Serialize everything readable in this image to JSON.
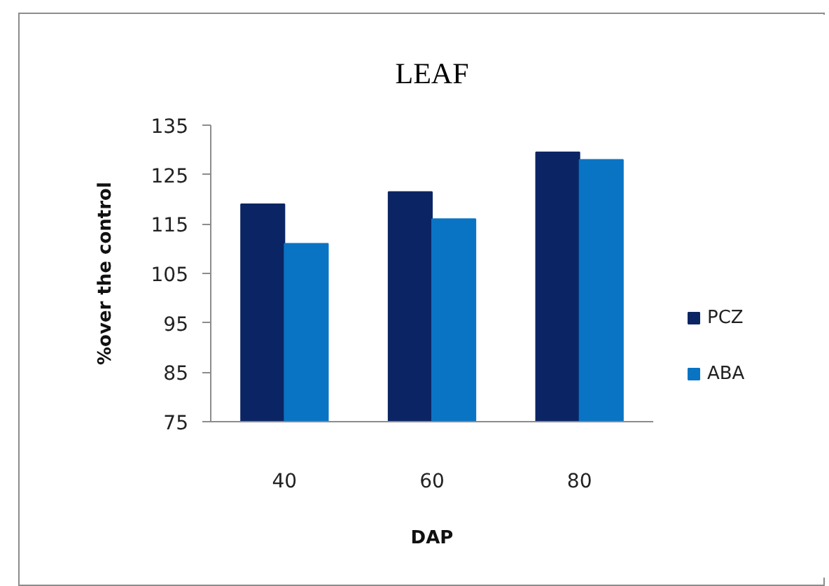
{
  "chart_data": {
    "type": "bar",
    "title": "LEAF",
    "xlabel": "DAP",
    "ylabel": "%over the control",
    "categories": [
      "40",
      "60",
      "80"
    ],
    "series": [
      {
        "name": "PCZ",
        "color": "#0b2564",
        "values": [
          119,
          121.5,
          129.5
        ]
      },
      {
        "name": "ABA",
        "color": "#0a74c4",
        "values": [
          111,
          116,
          128
        ]
      }
    ],
    "ylim": [
      75,
      135
    ],
    "yticks": [
      75,
      85,
      95,
      105,
      115,
      125,
      135
    ],
    "grid": false,
    "legend": "right"
  }
}
